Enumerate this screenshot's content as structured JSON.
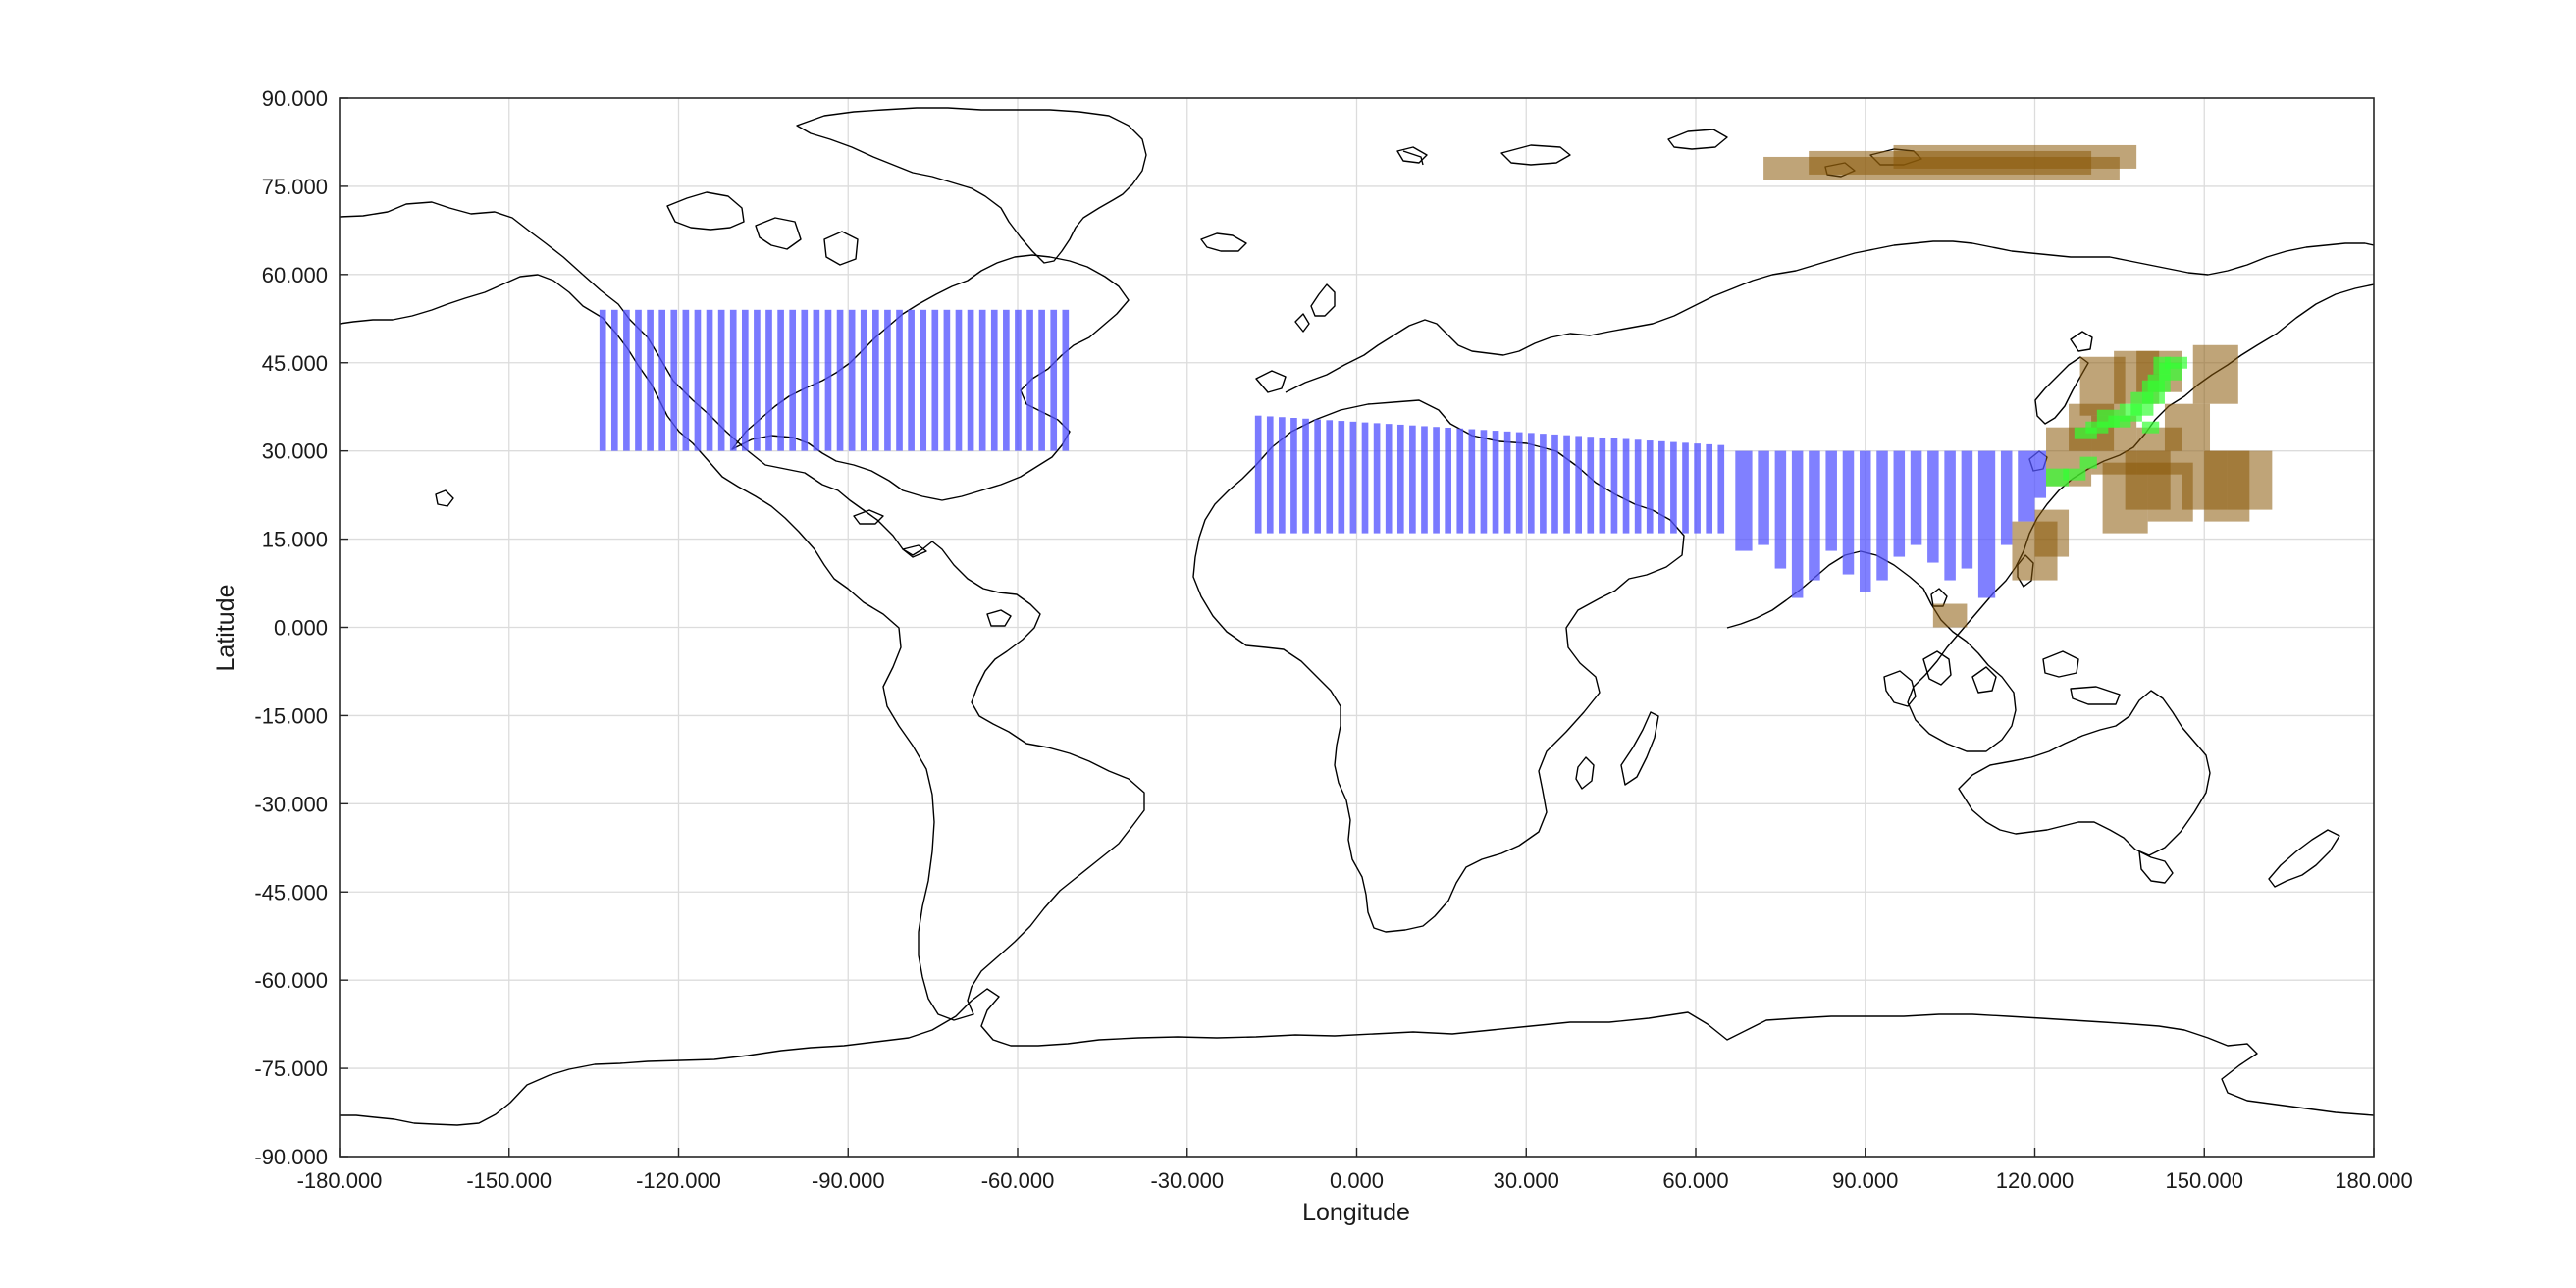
{
  "chart_data": {
    "type": "map",
    "xlabel": "Longitude",
    "ylabel": "Latitude",
    "xlim": [
      -180,
      180
    ],
    "ylim": [
      -90,
      90
    ],
    "grid": true,
    "x_ticks": [
      -180,
      -150,
      -120,
      -90,
      -60,
      -30,
      0,
      30,
      60,
      90,
      120,
      150,
      180
    ],
    "y_ticks": [
      -90,
      -75,
      -60,
      -45,
      -30,
      -15,
      0,
      15,
      30,
      45,
      60,
      75,
      90
    ],
    "x_tick_labels": [
      "-180.000",
      "-150.000",
      "-120.000",
      "-90.000",
      "-60.000",
      "-30.000",
      "0.000",
      "30.000",
      "60.000",
      "90.000",
      "120.000",
      "150.000",
      "180.000"
    ],
    "y_tick_labels": [
      "-90.000",
      "-75.000",
      "-60.000",
      "-45.000",
      "-30.000",
      "-15.000",
      "0.000",
      "15.000",
      "30.000",
      "45.000",
      "60.000",
      "75.000",
      "90.000"
    ],
    "colors": {
      "blue": "#5555ff",
      "brown": "#8b5a0a",
      "green": "#33ff33",
      "coast": "#000000",
      "grid": "#dcdcdc"
    },
    "regions": [
      {
        "color": "blue",
        "kind": "strips",
        "lon": [
          -134,
          -50
        ],
        "lat_bottom": 30,
        "lat_top_start": 54,
        "lat_top_end": 54,
        "n": 40,
        "gap": 0.45,
        "opacity": 0.78
      },
      {
        "color": "blue",
        "kind": "strips",
        "lon": [
          -18,
          66
        ],
        "lat_bottom": 16,
        "lat_top_start": 36,
        "lat_top_end": 31,
        "n": 40,
        "gap": 0.45,
        "opacity": 0.78
      },
      {
        "color": "blue",
        "kind": "bars",
        "opacity": 0.75,
        "bars": [
          [
            67,
            70,
            13,
            30
          ],
          [
            71,
            73,
            14,
            30
          ],
          [
            74,
            76,
            10,
            30
          ],
          [
            77,
            79,
            5,
            30
          ],
          [
            80,
            82,
            8,
            30
          ],
          [
            83,
            85,
            13,
            30
          ],
          [
            86,
            88,
            9,
            30
          ],
          [
            89,
            91,
            6,
            30
          ],
          [
            92,
            94,
            8,
            30
          ],
          [
            95,
            97,
            12,
            30
          ],
          [
            98,
            100,
            14,
            30
          ],
          [
            101,
            103,
            11,
            30
          ],
          [
            104,
            106,
            8,
            30
          ],
          [
            107,
            109,
            10,
            30
          ],
          [
            110,
            113,
            5,
            30
          ],
          [
            114,
            116,
            14,
            30
          ],
          [
            117,
            120,
            18,
            30
          ],
          [
            120,
            122,
            22,
            30
          ]
        ]
      },
      {
        "color": "brown",
        "kind": "boxes",
        "opacity": 0.55,
        "boxes": [
          [
            72,
            135,
            76,
            80
          ],
          [
            80,
            130,
            77,
            81
          ],
          [
            95,
            138,
            78,
            82
          ],
          [
            128,
            136,
            36,
            46
          ],
          [
            134,
            142,
            38,
            47
          ],
          [
            138,
            146,
            40,
            47
          ],
          [
            148,
            156,
            38,
            48
          ],
          [
            122,
            130,
            24,
            34
          ],
          [
            126,
            134,
            30,
            38
          ],
          [
            130,
            138,
            26,
            36
          ],
          [
            132,
            140,
            16,
            28
          ],
          [
            136,
            144,
            20,
            30
          ],
          [
            138,
            146,
            26,
            34
          ],
          [
            140,
            148,
            18,
            28
          ],
          [
            146,
            154,
            20,
            30
          ],
          [
            150,
            158,
            18,
            30
          ],
          [
            154,
            162,
            20,
            30
          ],
          [
            143,
            151,
            30,
            38
          ],
          [
            116,
            124,
            8,
            18
          ],
          [
            120,
            126,
            12,
            20
          ],
          [
            102,
            108,
            0,
            4
          ]
        ]
      },
      {
        "color": "green",
        "kind": "boxes",
        "opacity": 0.7,
        "boxes": [
          [
            129,
            133,
            33,
            35
          ],
          [
            131,
            135,
            34,
            37
          ],
          [
            133,
            137,
            34,
            36
          ],
          [
            135,
            139,
            35,
            38
          ],
          [
            137,
            141,
            36,
            40
          ],
          [
            139,
            143,
            38,
            42
          ],
          [
            140,
            144,
            40,
            43
          ],
          [
            142,
            146,
            42,
            45
          ],
          [
            141,
            144,
            43,
            46
          ],
          [
            143,
            147,
            44,
            46
          ],
          [
            127,
            131,
            32,
            34
          ],
          [
            125,
            129,
            25,
            27
          ],
          [
            128,
            131,
            27,
            29
          ],
          [
            122,
            126,
            24,
            27
          ],
          [
            139,
            142,
            33,
            35
          ]
        ]
      }
    ]
  }
}
